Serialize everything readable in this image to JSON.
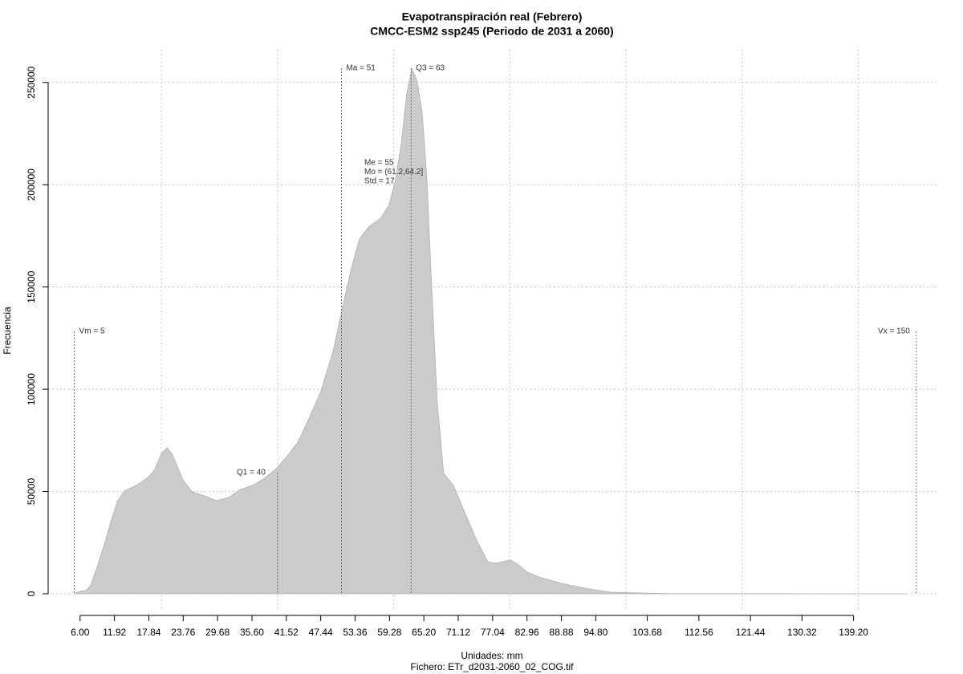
{
  "chart_data": {
    "type": "area",
    "title": "Evapotranspiración real (Febrero)",
    "subtitle": "CMCC-ESM2 ssp245 (Periodo de 2031 a 2060)",
    "x_label": "Unidades: mm",
    "file_label": "Fichero: ETr_d2031-2060_02_COG.tif",
    "y_label": "Frecuencia",
    "color": "#cbcbcb",
    "x": [
      5,
      6,
      7,
      7.8,
      9,
      10.1,
      11.3,
      12.4,
      13.6,
      15.7,
      17.7,
      18.9,
      20,
      21,
      22,
      23.7,
      25.3,
      27.4,
      29.5,
      31.6,
      33.6,
      35.7,
      37.8,
      39.9,
      41.5,
      43.6,
      45.4,
      47.5,
      49.5,
      51.3,
      52.7,
      54.1,
      55.7,
      57.8,
      59.2,
      60.3,
      61.3,
      62.2,
      63.1,
      64,
      64.9,
      65.7,
      66.5,
      67.5,
      68.6,
      70.3,
      72.3,
      74.4,
      76.2,
      77.6,
      78.8,
      80.1,
      81.3,
      83,
      85,
      88.9,
      93,
      97.2,
      102.7,
      107.6,
      148.3
    ],
    "values": [
      0,
      1200,
      1500,
      3900,
      13700,
      23500,
      35300,
      45100,
      50200,
      53000,
      56900,
      60800,
      68700,
      71400,
      67500,
      55700,
      49800,
      47900,
      45500,
      47100,
      51000,
      53000,
      56500,
      61600,
      66700,
      74600,
      85600,
      99300,
      117800,
      141300,
      159000,
      173500,
      179400,
      183700,
      190000,
      202100,
      219800,
      243400,
      256700,
      251200,
      235500,
      204100,
      153100,
      94200,
      58900,
      53000,
      39300,
      25500,
      15700,
      14900,
      15700,
      16500,
      14500,
      10600,
      8200,
      5100,
      2700,
      800,
      400,
      100,
      0
    ],
    "xlim": [
      0.5,
      153.9
    ],
    "ylim": [
      -7850,
      266000
    ],
    "xticks": [
      {
        "value": 6,
        "label": "6.00"
      },
      11.92,
      17.84,
      23.76,
      29.68,
      {
        "value": 35.6,
        "label": "35.60"
      },
      41.52,
      47.44,
      53.36,
      59.28,
      {
        "value": 65.2,
        "label": "65.20"
      },
      71.12,
      77.04,
      82.96,
      88.88,
      {
        "value": 94.8,
        "label": "94.80"
      },
      103.68,
      112.56,
      121.44,
      130.32,
      {
        "value": 139.2,
        "label": "139.20"
      }
    ],
    "xgrid": [
      20,
      40,
      60,
      80,
      100,
      120,
      140
    ],
    "yticks": [
      0,
      50000,
      100000,
      150000,
      200000,
      250000
    ],
    "grid": true,
    "annotations": [
      {
        "label": "Vm = 5",
        "x": 5,
        "top": 128300,
        "side": "right"
      },
      {
        "label": "Q1 = 40",
        "x": 40,
        "top": 59300,
        "side": "left"
      },
      {
        "label": "Ma = 51",
        "x": 51,
        "top": 257000,
        "side": "right"
      },
      {
        "label": "Q3 = 63",
        "x": 63,
        "top": 257000,
        "side": "right"
      },
      {
        "label": "Vx = 150",
        "x": 150,
        "top": 128300,
        "side": "left"
      }
    ],
    "stats_text": [
      "Me = 55",
      "Mo = (61.2,64.2]",
      "Std = 17"
    ]
  }
}
